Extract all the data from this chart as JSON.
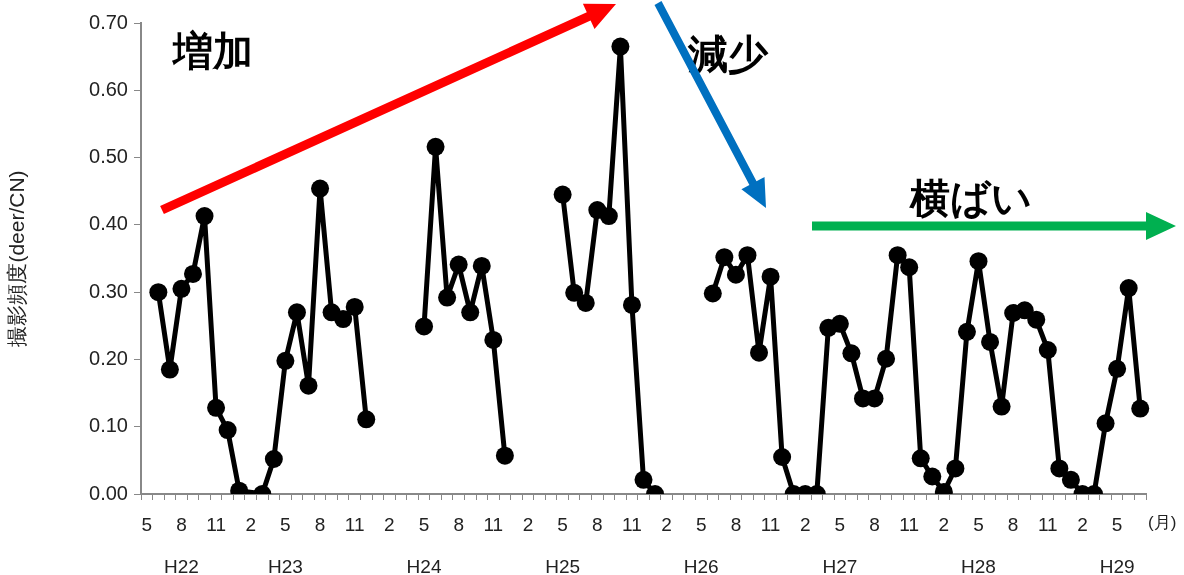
{
  "chart_data": {
    "type": "line",
    "ylabel": "撮影頻度(deer/CN)",
    "xlabel": "(月)",
    "categories": [
      "5",
      null,
      null,
      "8\nH22",
      null,
      null,
      "11",
      null,
      null,
      "2",
      null,
      null,
      "5\nH23",
      null,
      null,
      "8",
      null,
      null,
      "11",
      null,
      null,
      "2",
      null,
      null,
      "5\nH24",
      null,
      null,
      "8",
      null,
      null,
      "11",
      null,
      null,
      "2",
      null,
      null,
      "5\nH25",
      null,
      null,
      "8",
      null,
      null,
      "11",
      null,
      null,
      "2",
      null,
      null,
      "5\nH26",
      null,
      null,
      "8",
      null,
      null,
      "11",
      null,
      null,
      "2",
      null,
      null,
      "5\nH27",
      null,
      null,
      "8",
      null,
      null,
      "11",
      null,
      null,
      "2",
      null,
      null,
      "5\nH28",
      null,
      null,
      "8",
      null,
      null,
      "11",
      null,
      null,
      "2",
      null,
      null,
      "5\nH29",
      null,
      null
    ],
    "ylim": [
      0,
      0.7
    ],
    "yticks": [
      {
        "value": 0,
        "label": "0.00"
      },
      {
        "value": 0.1,
        "label": "0.10"
      },
      {
        "value": 0.2,
        "label": "0.20"
      },
      {
        "value": 0.3,
        "label": "0.30"
      },
      {
        "value": 0.4,
        "label": "0.40"
      },
      {
        "value": 0.5,
        "label": "0.50"
      },
      {
        "value": 0.6,
        "label": "0.60"
      },
      {
        "value": 0.7,
        "label": "0.70"
      }
    ],
    "grid": false,
    "legend": false,
    "marker": "circle",
    "line_style": "solid",
    "annotations": [
      "増加",
      "減少",
      "横ばい"
    ],
    "series": [
      {
        "color": "#000000",
        "values": [
          null,
          0.3,
          0.185,
          0.305,
          0.327,
          0.413,
          0.128,
          0.095,
          0.005,
          null,
          0.0,
          0.052,
          0.198,
          0.27,
          0.161,
          0.454,
          0.27,
          0.26,
          0.278,
          0.111,
          null,
          null,
          null,
          null,
          null,
          null,
          null,
          null,
          null,
          null,
          null,
          null,
          null,
          null,
          null,
          null,
          null,
          null,
          null,
          null,
          null,
          null,
          null,
          null,
          null,
          null,
          null,
          null,
          null,
          null,
          null,
          null,
          null,
          null,
          null,
          null,
          null,
          null,
          null,
          null,
          null,
          null,
          null,
          null,
          null,
          null,
          null,
          null,
          null,
          null,
          null,
          null,
          null,
          null,
          null,
          null,
          null,
          null,
          null,
          null,
          null,
          null,
          null,
          null,
          null,
          null,
          null
        ]
      },
      {
        "color": "#000000",
        "values": [
          null,
          null,
          null,
          null,
          null,
          null,
          null,
          null,
          null,
          null,
          null,
          null,
          null,
          null,
          null,
          null,
          null,
          null,
          null,
          null,
          null,
          null,
          null,
          null,
          0.249,
          0.516,
          0.292,
          0.341,
          0.27,
          0.339,
          0.229,
          0.057,
          null,
          null,
          null,
          null,
          null,
          null,
          null,
          null,
          null,
          null,
          null,
          null,
          null,
          null,
          null,
          null,
          null,
          null,
          null,
          null,
          null,
          null,
          null,
          null,
          null,
          null,
          null,
          null,
          null,
          null,
          null,
          null,
          null,
          null,
          null,
          null,
          null,
          null,
          null,
          null,
          null,
          null,
          null,
          null,
          null,
          null,
          null,
          null,
          null,
          null,
          null,
          null,
          null,
          null,
          null
        ]
      },
      {
        "color": "#000000",
        "values": [
          null,
          null,
          null,
          null,
          null,
          null,
          null,
          null,
          null,
          null,
          null,
          null,
          null,
          null,
          null,
          null,
          null,
          null,
          null,
          null,
          null,
          null,
          null,
          null,
          null,
          null,
          null,
          null,
          null,
          null,
          null,
          null,
          null,
          null,
          null,
          null,
          0.445,
          0.299,
          0.284,
          0.422,
          0.413,
          0.665,
          0.281,
          0.021,
          0.0,
          null,
          null,
          null,
          null,
          null,
          null,
          null,
          null,
          null,
          null,
          null,
          null,
          null,
          null,
          null,
          null,
          null,
          null,
          null,
          null,
          null,
          null,
          null,
          null,
          null,
          null,
          null,
          null,
          null,
          null,
          null,
          null,
          null,
          null,
          null,
          null,
          null,
          null,
          null,
          null,
          null,
          null
        ]
      },
      {
        "color": "#000000",
        "values": [
          null,
          null,
          null,
          null,
          null,
          null,
          null,
          null,
          null,
          null,
          null,
          null,
          null,
          null,
          null,
          null,
          null,
          null,
          null,
          null,
          null,
          null,
          null,
          null,
          null,
          null,
          null,
          null,
          null,
          null,
          null,
          null,
          null,
          null,
          null,
          null,
          null,
          null,
          null,
          null,
          null,
          null,
          null,
          null,
          null,
          null,
          null,
          null,
          null,
          0.298,
          0.352,
          0.326,
          0.355,
          0.21,
          0.323,
          0.055,
          0.0,
          0.0,
          0.0,
          0.247,
          0.253,
          0.209,
          0.142,
          0.142,
          0.201,
          0.355,
          0.337,
          0.053,
          0.026,
          0.003,
          0.038,
          0.241,
          0.346,
          0.226,
          0.13,
          0.269,
          0.273,
          0.259,
          0.214,
          0.038,
          0.021,
          0.0,
          0.0,
          0.105,
          0.186,
          0.306,
          0.127
        ]
      }
    ]
  }
}
